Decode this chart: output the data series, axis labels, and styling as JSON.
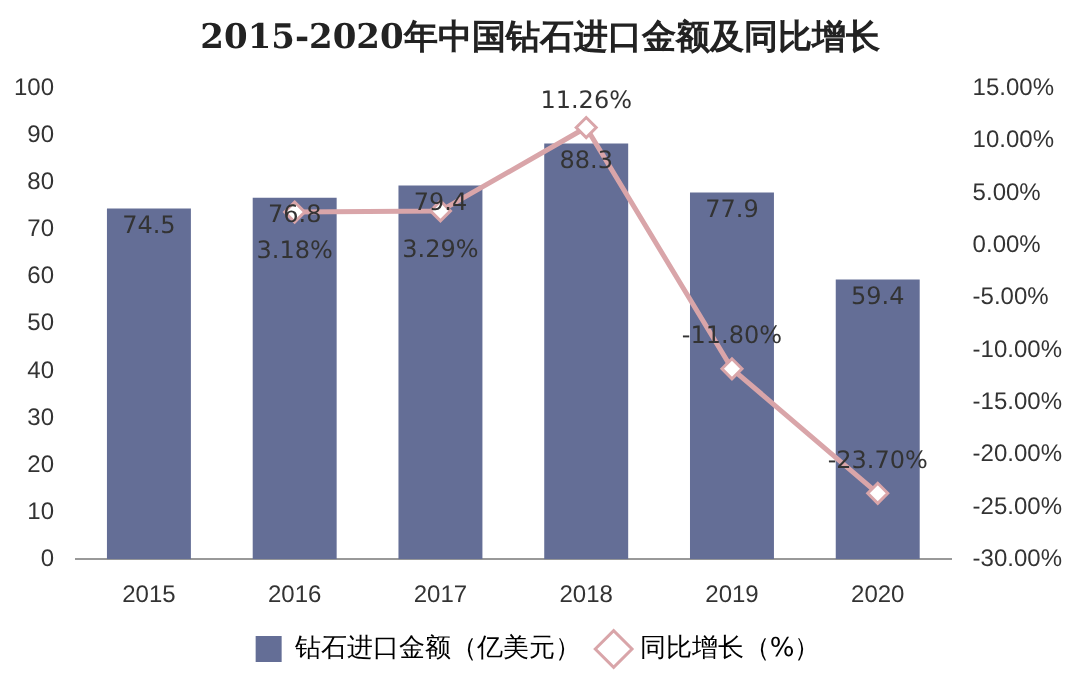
{
  "chart_data": {
    "type": "bar",
    "title": "2015-2020年中国钻石进口金额及同比增长",
    "categories": [
      "2015",
      "2016",
      "2017",
      "2018",
      "2019",
      "2020"
    ],
    "series": [
      {
        "name": "钻石进口金额（亿美元）",
        "color": "#646e96",
        "values": [
          74.5,
          76.8,
          79.4,
          88.3,
          77.9,
          59.4
        ],
        "value_labels": [
          "74.5",
          "76.8",
          "79.4",
          "88.3",
          "77.9",
          "59.4"
        ]
      },
      {
        "name": "同比增长（%）",
        "type": "line",
        "axis": "y2",
        "color": "#d9a5a9",
        "marker": "diamond",
        "values": [
          null,
          3.18,
          3.29,
          11.26,
          -11.8,
          -23.7
        ],
        "value_labels": [
          null,
          "3.18%",
          "3.29%",
          "11.26%",
          "-11.80%",
          "-23.70%"
        ]
      }
    ],
    "ylim": [
      0,
      100
    ],
    "yticks": [
      0,
      10,
      20,
      30,
      40,
      50,
      60,
      70,
      80,
      90,
      100
    ],
    "y2lim": [
      -30,
      15
    ],
    "y2ticks": [
      {
        "value": -30,
        "label": "-30.00%"
      },
      {
        "value": -25,
        "label": "-25.00%"
      },
      {
        "value": -20,
        "label": "-20.00%"
      },
      {
        "value": -15,
        "label": "-15.00%"
      },
      {
        "value": -10,
        "label": "-10.00%"
      },
      {
        "value": -5,
        "label": "-5.00%"
      },
      {
        "value": 0,
        "label": "0.00%"
      },
      {
        "value": 5,
        "label": "5.00%"
      },
      {
        "value": 10,
        "label": "10.00%"
      },
      {
        "value": 15,
        "label": "15.00%"
      }
    ],
    "grid": false,
    "legend": "bottom"
  }
}
